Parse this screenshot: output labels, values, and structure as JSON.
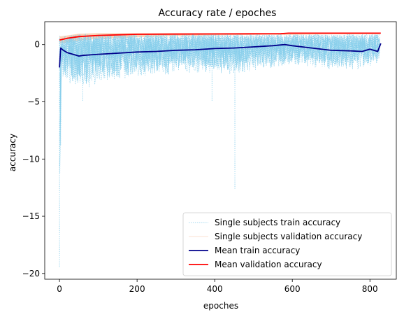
{
  "chart_data": {
    "type": "line",
    "title": "Accuracy rate / epoches",
    "xlabel": "epoches",
    "ylabel": "accuracy",
    "xlim": [
      -38,
      868
    ],
    "ylim": [
      -20.5,
      2.0
    ],
    "x_ticks": [
      0,
      200,
      400,
      600,
      800
    ],
    "x_tick_labels": [
      "0",
      "200",
      "400",
      "600",
      "800"
    ],
    "y_ticks": [
      0,
      -5,
      -10,
      -15,
      -20
    ],
    "y_tick_labels": [
      "0",
      "−5",
      "−10",
      "−15",
      "−20"
    ],
    "grid": false,
    "legend_position": "lower-right",
    "series": [
      {
        "name": "Single subjects train accuracy",
        "style": "dotted-band",
        "color": "#87CEEB",
        "x": [
          0,
          5,
          20,
          50,
          100,
          150,
          200,
          250,
          300,
          350,
          400,
          450,
          500,
          550,
          600,
          650,
          700,
          750,
          800,
          825
        ],
        "low": [
          -19.5,
          -3.0,
          -3.5,
          -4.0,
          -3.5,
          -3.2,
          -2.8,
          -2.8,
          -2.6,
          -2.5,
          -2.7,
          -2.8,
          -2.3,
          -2.2,
          -2.0,
          -2.0,
          -2.2,
          -2.4,
          -2.0,
          -1.5
        ],
        "high": [
          0.8,
          0.7,
          0.8,
          0.9,
          0.9,
          0.9,
          0.9,
          0.9,
          0.9,
          0.9,
          0.9,
          0.9,
          0.9,
          0.9,
          0.9,
          0.9,
          0.9,
          0.9,
          0.9,
          0.9
        ],
        "spikes": [
          {
            "x": 0,
            "y": -19.5
          },
          {
            "x": 393,
            "y": -5.0
          },
          {
            "x": 452,
            "y": -12.6
          },
          {
            "x": 60,
            "y": -5.0
          }
        ]
      },
      {
        "name": "Single subjects validation accuracy",
        "style": "band",
        "color": "#F8C8A8",
        "x": [
          0,
          50,
          100,
          200,
          300,
          400,
          500,
          600,
          700,
          825
        ],
        "low": [
          0.1,
          0.35,
          0.5,
          0.65,
          0.75,
          0.8,
          0.85,
          0.85,
          0.9,
          0.9
        ],
        "high": [
          0.7,
          0.95,
          1.0,
          1.0,
          1.0,
          1.0,
          1.0,
          1.0,
          1.0,
          1.0
        ]
      },
      {
        "name": "Mean train accuracy",
        "color": "#00008B",
        "x": [
          0,
          3,
          10,
          20,
          35,
          50,
          60,
          80,
          100,
          150,
          200,
          250,
          300,
          350,
          400,
          450,
          500,
          550,
          580,
          600,
          650,
          700,
          750,
          780,
          800,
          820,
          828
        ],
        "y": [
          -2.0,
          -0.3,
          -0.5,
          -0.7,
          -0.85,
          -1.0,
          -0.95,
          -0.9,
          -0.85,
          -0.75,
          -0.65,
          -0.6,
          -0.5,
          -0.45,
          -0.35,
          -0.3,
          -0.2,
          -0.1,
          0.0,
          -0.1,
          -0.3,
          -0.5,
          -0.55,
          -0.6,
          -0.4,
          -0.6,
          0.1
        ]
      },
      {
        "name": "Mean validation accuracy",
        "color": "#FF0000",
        "x": [
          0,
          20,
          50,
          100,
          150,
          200,
          300,
          400,
          500,
          570,
          590,
          650,
          700,
          750,
          800,
          828
        ],
        "y": [
          0.4,
          0.55,
          0.7,
          0.8,
          0.85,
          0.9,
          0.92,
          0.93,
          0.94,
          0.95,
          1.0,
          1.0,
          1.0,
          1.0,
          1.0,
          1.0
        ]
      }
    ]
  }
}
